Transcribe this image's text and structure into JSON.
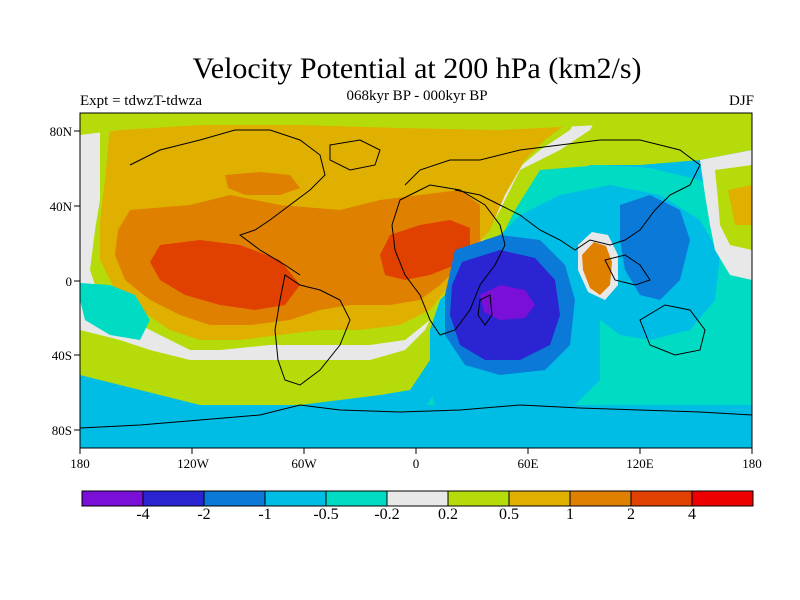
{
  "title": "Velocity Potential at 200 hPa (km2/s)",
  "subtitle": "068kyr BP - 000kyr BP",
  "experiment": "Expt = tdwzT-tdwza",
  "season": "DJF",
  "lat_ticks": [
    "80N",
    "40N",
    "0",
    "40S",
    "80S"
  ],
  "lon_ticks": [
    "180",
    "120W",
    "60W",
    "0",
    "60E",
    "120E",
    "180"
  ],
  "colorbar": {
    "labels": [
      "-4",
      "-2",
      "-1",
      "-0.5",
      "-0.2",
      "0.2",
      "0.5",
      "1",
      "2",
      "4"
    ],
    "colors": [
      "#7a0fd8",
      "#2a24d2",
      "#0a79d8",
      "#00bde5",
      "#00dcc4",
      "#e8e8e8",
      "#b5dc0a",
      "#e0b000",
      "#e08000",
      "#e04000",
      "#ee0000"
    ]
  },
  "map_colors": {
    "ocean_bg": "#00bde5",
    "land_outline": "#000000"
  }
}
